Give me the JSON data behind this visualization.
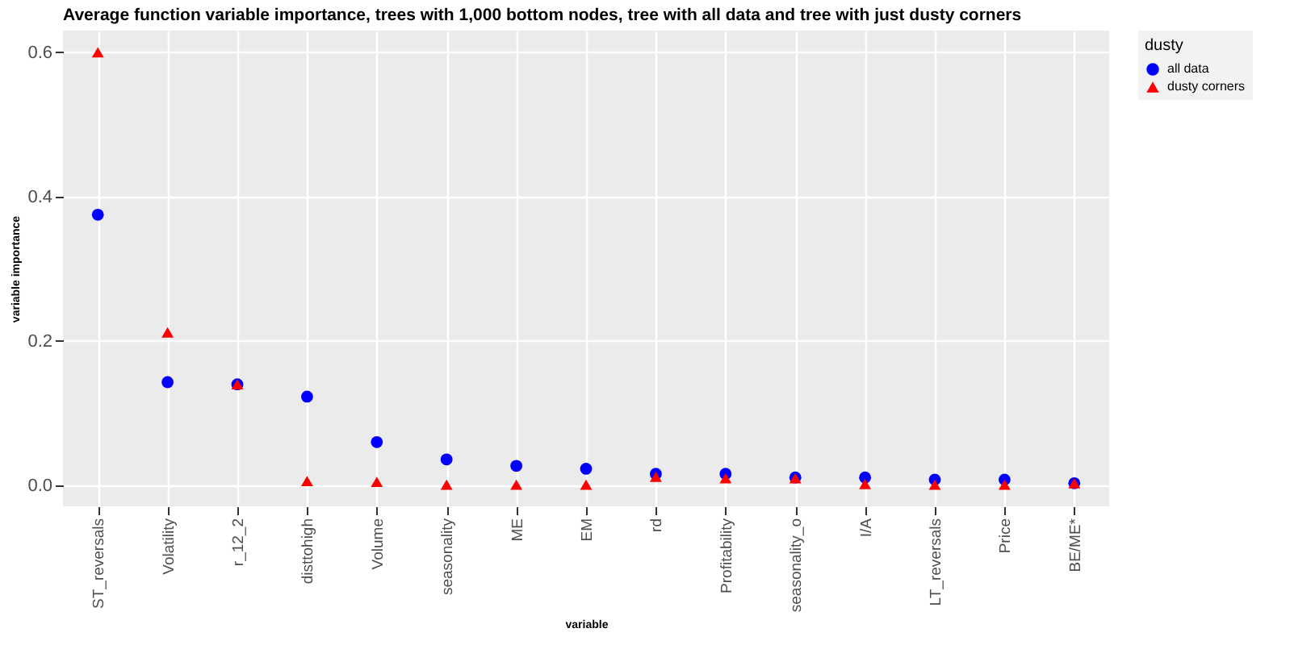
{
  "chart_data": {
    "type": "scatter",
    "title": "Average function variable importance, trees with 1,000 bottom nodes, tree with all data and tree with just dusty corners",
    "xlabel": "variable",
    "ylabel": "variable importance",
    "legend_title": "dusty",
    "categories": [
      "ST_reversals",
      "Volatility",
      "r_12_2",
      "disttohigh",
      "Volume",
      "seasonality",
      "ME",
      "EM",
      "rd",
      "Profitability",
      "seasonality_o",
      "I/A",
      "LT_reversals",
      "Price",
      "BE/ME*"
    ],
    "series": [
      {
        "name": "all data",
        "color": "#0000ff",
        "marker": "circle",
        "values": [
          0.375,
          0.143,
          0.14,
          0.123,
          0.06,
          0.036,
          0.027,
          0.023,
          0.016,
          0.016,
          0.011,
          0.011,
          0.008,
          0.008,
          0.003
        ]
      },
      {
        "name": "dusty corners",
        "color": "#ff0000",
        "marker": "triangle",
        "values": [
          0.6,
          0.212,
          0.14,
          0.006,
          0.005,
          0.001,
          0.001,
          0.001,
          0.012,
          0.01,
          0.01,
          0.002,
          0.001,
          0.001,
          0.003
        ]
      }
    ],
    "ylim": [
      -0.029,
      0.63
    ],
    "yticks": [
      {
        "value": 0,
        "label": "0.0"
      },
      {
        "value": 0.2,
        "label": "0.2"
      },
      {
        "value": 0.4,
        "label": "0.4"
      },
      {
        "value": 0.6,
        "label": "0.6"
      }
    ],
    "grid": true,
    "legend": "right"
  }
}
